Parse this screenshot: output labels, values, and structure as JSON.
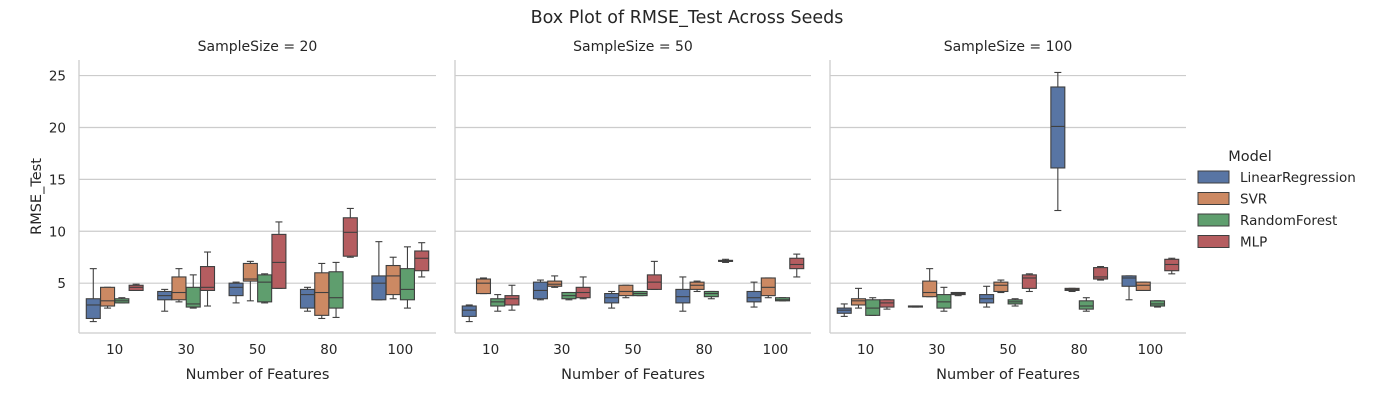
{
  "chart_data": {
    "type": "box",
    "title": "Box Plot of RMSE_Test Across Seeds",
    "xlabel": "Number of Features",
    "ylabel": "RMSE_Test",
    "ylim": [
      0.2,
      26.5
    ],
    "yticks": [
      5,
      10,
      15,
      20,
      25
    ],
    "grid": "y",
    "legend": {
      "title": "Model",
      "placement": "right",
      "entries": [
        "LinearRegression",
        "SVR",
        "RandomForest",
        "MLP"
      ]
    },
    "colors": {
      "LinearRegression": "#5875a4",
      "SVR": "#cc8963",
      "RandomForest": "#5f9e6e",
      "MLP": "#b55d60"
    },
    "categories": [
      "10",
      "30",
      "50",
      "80",
      "100"
    ],
    "panels": [
      {
        "title": "SampleSize = 20",
        "series": [
          {
            "name": "LinearRegression",
            "boxes": [
              {
                "min": 1.3,
                "q1": 1.6,
                "median": 2.9,
                "q3": 3.5,
                "max": 6.4
              },
              {
                "min": 2.3,
                "q1": 3.4,
                "median": 3.8,
                "q3": 4.2,
                "max": 4.4
              },
              {
                "min": 3.1,
                "q1": 3.8,
                "median": 4.6,
                "q3": 5.0,
                "max": 5.1
              },
              {
                "min": 2.3,
                "q1": 2.6,
                "median": 3.9,
                "q3": 4.4,
                "max": 4.6
              },
              {
                "min": 3.4,
                "q1": 3.4,
                "median": 5.0,
                "q3": 5.7,
                "max": 9.0
              }
            ]
          },
          {
            "name": "SVR",
            "boxes": [
              {
                "min": 2.6,
                "q1": 2.8,
                "median": 3.3,
                "q3": 4.6,
                "max": 4.6
              },
              {
                "min": 3.2,
                "q1": 3.4,
                "median": 4.1,
                "q3": 5.6,
                "max": 6.4
              },
              {
                "min": 3.3,
                "q1": 5.2,
                "median": 5.4,
                "q3": 6.9,
                "max": 7.1
              },
              {
                "min": 1.6,
                "q1": 1.9,
                "median": 4.1,
                "q3": 6.0,
                "max": 6.9
              },
              {
                "min": 3.5,
                "q1": 3.9,
                "median": 5.7,
                "q3": 6.7,
                "max": 7.5
              }
            ]
          },
          {
            "name": "RandomForest",
            "boxes": [
              {
                "min": 3.1,
                "q1": 3.1,
                "median": 3.3,
                "q3": 3.5,
                "max": 3.6
              },
              {
                "min": 2.6,
                "q1": 2.7,
                "median": 3.0,
                "q3": 4.6,
                "max": 5.8
              },
              {
                "min": 3.1,
                "q1": 3.2,
                "median": 5.1,
                "q3": 5.8,
                "max": 5.9
              },
              {
                "min": 1.7,
                "q1": 2.6,
                "median": 3.6,
                "q3": 6.1,
                "max": 7.0
              },
              {
                "min": 2.6,
                "q1": 3.4,
                "median": 4.4,
                "q3": 6.4,
                "max": 8.5
              }
            ]
          },
          {
            "name": "MLP",
            "boxes": [
              {
                "min": 4.3,
                "q1": 4.3,
                "median": 4.6,
                "q3": 4.8,
                "max": 4.9
              },
              {
                "min": 2.8,
                "q1": 4.3,
                "median": 4.6,
                "q3": 6.6,
                "max": 8.0
              },
              {
                "min": 4.5,
                "q1": 4.5,
                "median": 7.0,
                "q3": 9.7,
                "max": 10.9
              },
              {
                "min": 7.5,
                "q1": 7.6,
                "median": 9.9,
                "q3": 11.3,
                "max": 12.2
              },
              {
                "min": 5.6,
                "q1": 6.2,
                "median": 7.4,
                "q3": 8.1,
                "max": 8.9
              }
            ]
          }
        ]
      },
      {
        "title": "SampleSize = 50",
        "series": [
          {
            "name": "LinearRegression",
            "boxes": [
              {
                "min": 1.3,
                "q1": 1.8,
                "median": 2.4,
                "q3": 2.8,
                "max": 2.9
              },
              {
                "min": 3.4,
                "q1": 3.5,
                "median": 4.3,
                "q3": 5.1,
                "max": 5.3
              },
              {
                "min": 2.6,
                "q1": 3.1,
                "median": 3.6,
                "q3": 4.0,
                "max": 4.2
              },
              {
                "min": 2.3,
                "q1": 3.1,
                "median": 3.7,
                "q3": 4.4,
                "max": 5.6
              },
              {
                "min": 2.7,
                "q1": 3.2,
                "median": 3.6,
                "q3": 4.2,
                "max": 5.1
              }
            ]
          },
          {
            "name": "SVR",
            "boxes": [
              {
                "min": 4.0,
                "q1": 4.0,
                "median": 5.0,
                "q3": 5.4,
                "max": 5.5
              },
              {
                "min": 4.6,
                "q1": 4.7,
                "median": 4.9,
                "q3": 5.2,
                "max": 5.7
              },
              {
                "min": 3.6,
                "q1": 3.8,
                "median": 4.2,
                "q3": 4.8,
                "max": 4.8
              },
              {
                "min": 4.2,
                "q1": 4.4,
                "median": 4.8,
                "q3": 5.1,
                "max": 5.2
              },
              {
                "min": 3.6,
                "q1": 3.8,
                "median": 4.6,
                "q3": 5.5,
                "max": 5.5
              }
            ]
          },
          {
            "name": "RandomForest",
            "boxes": [
              {
                "min": 2.3,
                "q1": 2.8,
                "median": 3.2,
                "q3": 3.5,
                "max": 3.9
              },
              {
                "min": 3.4,
                "q1": 3.5,
                "median": 3.8,
                "q3": 4.1,
                "max": 4.1
              },
              {
                "min": 3.8,
                "q1": 3.8,
                "median": 4.0,
                "q3": 4.2,
                "max": 4.2
              },
              {
                "min": 3.5,
                "q1": 3.7,
                "median": 4.0,
                "q3": 4.2,
                "max": 4.2
              },
              {
                "min": 3.3,
                "q1": 3.3,
                "median": 3.4,
                "q3": 3.6,
                "max": 3.6
              }
            ]
          },
          {
            "name": "MLP",
            "boxes": [
              {
                "min": 2.4,
                "q1": 2.9,
                "median": 3.5,
                "q3": 3.8,
                "max": 4.8
              },
              {
                "min": 3.5,
                "q1": 3.6,
                "median": 4.1,
                "q3": 4.6,
                "max": 5.6
              },
              {
                "min": 4.4,
                "q1": 4.4,
                "median": 5.1,
                "q3": 5.8,
                "max": 7.1
              },
              {
                "min": 7.0,
                "q1": 7.1,
                "median": 7.1,
                "q3": 7.2,
                "max": 7.3
              },
              {
                "min": 5.6,
                "q1": 6.4,
                "median": 6.8,
                "q3": 7.4,
                "max": 7.8
              }
            ]
          }
        ]
      },
      {
        "title": "SampleSize = 100",
        "series": [
          {
            "name": "LinearRegression",
            "boxes": [
              {
                "min": 1.8,
                "q1": 2.1,
                "median": 2.4,
                "q3": 2.6,
                "max": 3.0
              },
              {
                "min": 2.7,
                "q1": 2.7,
                "median": 2.8,
                "q3": 2.8,
                "max": 2.8
              },
              {
                "min": 2.7,
                "q1": 3.1,
                "median": 3.5,
                "q3": 3.9,
                "max": 4.7
              },
              {
                "min": 12.0,
                "q1": 16.1,
                "median": 20.1,
                "q3": 23.9,
                "max": 25.3
              },
              {
                "min": 3.4,
                "q1": 4.7,
                "median": 5.5,
                "q3": 5.7,
                "max": 5.7
              }
            ]
          },
          {
            "name": "SVR",
            "boxes": [
              {
                "min": 2.6,
                "q1": 2.9,
                "median": 3.3,
                "q3": 3.5,
                "max": 4.5
              },
              {
                "min": 3.7,
                "q1": 3.7,
                "median": 4.1,
                "q3": 5.2,
                "max": 6.4
              },
              {
                "min": 4.1,
                "q1": 4.2,
                "median": 4.8,
                "q3": 5.1,
                "max": 5.3
              },
              {
                "min": 4.2,
                "q1": 4.3,
                "median": 4.4,
                "q3": 4.5,
                "max": 4.5
              },
              {
                "min": 4.3,
                "q1": 4.3,
                "median": 4.8,
                "q3": 5.1,
                "max": 5.1
              }
            ]
          },
          {
            "name": "RandomForest",
            "boxes": [
              {
                "min": 1.9,
                "q1": 1.9,
                "median": 2.6,
                "q3": 3.4,
                "max": 3.6
              },
              {
                "min": 2.3,
                "q1": 2.6,
                "median": 3.2,
                "q3": 3.9,
                "max": 4.6
              },
              {
                "min": 2.8,
                "q1": 3.0,
                "median": 3.2,
                "q3": 3.4,
                "max": 3.5
              },
              {
                "min": 2.3,
                "q1": 2.5,
                "median": 2.8,
                "q3": 3.3,
                "max": 3.6
              },
              {
                "min": 2.7,
                "q1": 2.8,
                "median": 3.0,
                "q3": 3.3,
                "max": 3.3
              }
            ]
          },
          {
            "name": "MLP",
            "boxes": [
              {
                "min": 2.5,
                "q1": 2.7,
                "median": 3.1,
                "q3": 3.4,
                "max": 3.4
              },
              {
                "min": 3.8,
                "q1": 3.9,
                "median": 4.0,
                "q3": 4.1,
                "max": 4.1
              },
              {
                "min": 4.2,
                "q1": 4.5,
                "median": 5.5,
                "q3": 5.8,
                "max": 5.9
              },
              {
                "min": 5.3,
                "q1": 5.4,
                "median": 5.6,
                "q3": 6.5,
                "max": 6.6
              },
              {
                "min": 5.9,
                "q1": 6.2,
                "median": 6.8,
                "q3": 7.3,
                "max": 7.4
              }
            ]
          }
        ]
      }
    ]
  }
}
